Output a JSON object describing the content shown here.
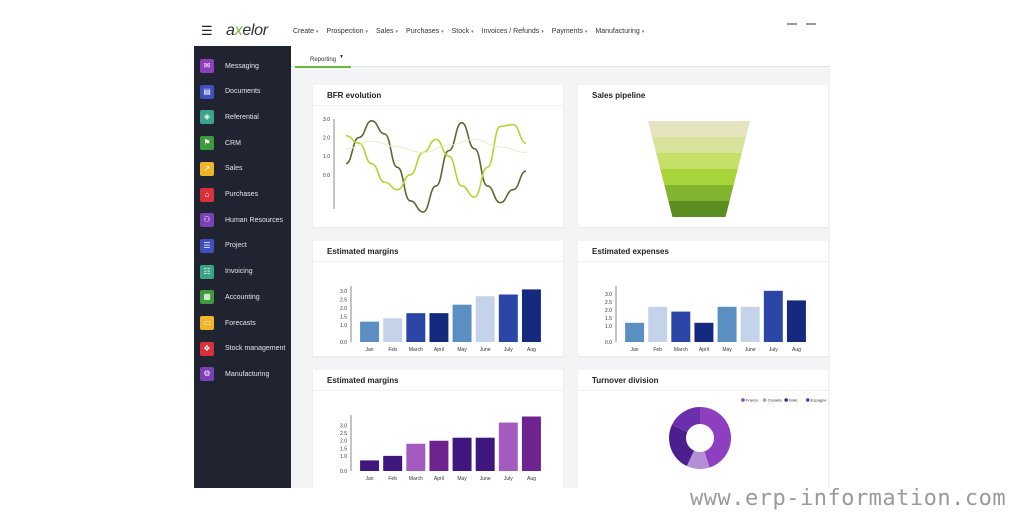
{
  "app": {
    "logo_prefix": "a",
    "logo_x": "x",
    "logo_suffix": "elor",
    "menu": [
      "Create",
      "Prospection",
      "Sales",
      "Purchases",
      "Stock",
      "Invoices / Refunds",
      "Payments",
      "Manufacturing"
    ]
  },
  "sidebar": {
    "items": [
      {
        "label": "Messaging",
        "icon": "messaging-icon",
        "color": "#8e3fbf",
        "glyph": "✉"
      },
      {
        "label": "Documents",
        "icon": "documents-icon",
        "color": "#3f4fbf",
        "glyph": "▤"
      },
      {
        "label": "Referential",
        "icon": "referential-icon",
        "color": "#3aa38a",
        "glyph": "◈"
      },
      {
        "label": "CRM",
        "icon": "crm-icon",
        "color": "#3d9a3d",
        "glyph": "⚑"
      },
      {
        "label": "Sales",
        "icon": "sales-icon",
        "color": "#f0b429",
        "glyph": "↗"
      },
      {
        "label": "Purchases",
        "icon": "purchases-icon",
        "color": "#d9303b",
        "glyph": "⌂"
      },
      {
        "label": "Human Resources",
        "icon": "human-resources-icon",
        "color": "#7b3fb8",
        "glyph": "⚇"
      },
      {
        "label": "Project",
        "icon": "project-icon",
        "color": "#3f4fbf",
        "glyph": "☰"
      },
      {
        "label": "Invoicing",
        "icon": "invoicing-icon",
        "color": "#3aa38a",
        "glyph": "☷"
      },
      {
        "label": "Accounting",
        "icon": "accounting-icon",
        "color": "#3d9a3d",
        "glyph": "▦"
      },
      {
        "label": "Forecasts",
        "icon": "forecasts-icon",
        "color": "#f0b429",
        "glyph": "▭"
      },
      {
        "label": "Stock management",
        "icon": "stock-management-icon",
        "color": "#d9303b",
        "glyph": "❖"
      },
      {
        "label": "Manufacturing",
        "icon": "manufacturing-icon",
        "color": "#7b3fb8",
        "glyph": "⚙"
      }
    ]
  },
  "tabs": [
    {
      "label": "Reporting",
      "active": true
    }
  ],
  "cards": {
    "bfr": {
      "title": "BFR evolution"
    },
    "pipeline": {
      "title": "Sales pipeline"
    },
    "margins1": {
      "title": "Estimated margins"
    },
    "expenses": {
      "title": "Estimated expenses"
    },
    "margins2": {
      "title": "Estimated margins"
    },
    "turnover": {
      "title": "Turnover division"
    }
  },
  "watermark": "www.erp-information.com",
  "chart_data": [
    {
      "id": "bfr",
      "type": "line",
      "title": "BFR evolution",
      "x": [
        10,
        20,
        30,
        40,
        50,
        60,
        70,
        80
      ],
      "x_ticks": [
        "10",
        "20",
        "30",
        "40",
        "50",
        "60",
        "70",
        "80"
      ],
      "y_ticks": [
        "3.0",
        "2.0",
        "1.0",
        "0.0"
      ],
      "ylim": [
        -2,
        3
      ],
      "series": [
        {
          "color": "#556b2f",
          "points": [
            [
              10,
              0.6
            ],
            [
              15,
              2.0
            ],
            [
              20,
              2.9
            ],
            [
              25,
              2.2
            ],
            [
              30,
              0.4
            ],
            [
              35,
              -1.4
            ],
            [
              40,
              -2.0
            ],
            [
              45,
              -0.6
            ],
            [
              50,
              1.3
            ],
            [
              55,
              2.8
            ],
            [
              60,
              1.4
            ],
            [
              65,
              -0.6
            ],
            [
              70,
              -1.5
            ],
            [
              75,
              -0.8
            ],
            [
              80,
              0.2
            ]
          ]
        },
        {
          "color": "#b5d334",
          "points": [
            [
              10,
              2.1
            ],
            [
              15,
              1.7
            ],
            [
              20,
              0.6
            ],
            [
              25,
              -0.4
            ],
            [
              30,
              -0.8
            ],
            [
              35,
              0.0
            ],
            [
              40,
              1.2
            ],
            [
              45,
              1.9
            ],
            [
              50,
              1.0
            ],
            [
              55,
              -0.6
            ],
            [
              60,
              -1.2
            ],
            [
              65,
              0.4
            ],
            [
              70,
              2.6
            ],
            [
              75,
              2.7
            ],
            [
              80,
              1.7
            ]
          ]
        },
        {
          "color": "#e6eec8",
          "points": [
            [
              10,
              1.4
            ],
            [
              20,
              1.8
            ],
            [
              30,
              1.5
            ],
            [
              40,
              1.2
            ],
            [
              50,
              1.6
            ],
            [
              60,
              1.9
            ],
            [
              70,
              1.5
            ],
            [
              80,
              1.2
            ]
          ]
        }
      ]
    },
    {
      "id": "pipeline",
      "type": "funnel",
      "title": "Sales pipeline",
      "stages": [
        {
          "value": 100,
          "color": "#e5e3c0"
        },
        {
          "value": 92,
          "color": "#d8e29b"
        },
        {
          "value": 84,
          "color": "#c5e066"
        },
        {
          "value": 76,
          "color": "#a8d43c"
        },
        {
          "value": 68,
          "color": "#82b52d"
        },
        {
          "value": 60,
          "color": "#5a8e21"
        }
      ]
    },
    {
      "id": "margins1",
      "type": "bar",
      "title": "Estimated margins",
      "categories": [
        "Jan",
        "Feb",
        "March",
        "April",
        "May",
        "June",
        "July",
        "Aug"
      ],
      "values": [
        1.2,
        1.4,
        1.7,
        1.7,
        2.2,
        2.7,
        2.8,
        3.1
      ],
      "colors": [
        "#5b8fc2",
        "#c5d3ea",
        "#2b46a6",
        "#152a7e",
        "#5b8fc2",
        "#c5d3ea",
        "#2b46a6",
        "#152a7e"
      ],
      "y_ticks": [
        "3.0",
        "2.5",
        "2.0",
        "1.5",
        "1.0",
        "0.0"
      ],
      "ylim": [
        0,
        3.3
      ]
    },
    {
      "id": "expenses",
      "type": "bar",
      "title": "Estimated expenses",
      "categories": [
        "Jan",
        "Feb",
        "March",
        "April",
        "May",
        "June",
        "July",
        "Aug"
      ],
      "values": [
        1.2,
        2.2,
        1.9,
        1.2,
        2.2,
        2.2,
        3.2,
        2.6
      ],
      "colors": [
        "#5b8fc2",
        "#c5d3ea",
        "#2b46a6",
        "#152a7e",
        "#5b8fc2",
        "#c5d3ea",
        "#2b46a6",
        "#152a7e"
      ],
      "y_ticks": [
        "3.0",
        "2.5",
        "2.0",
        "1.5",
        "1.0",
        "0.0"
      ],
      "ylim": [
        0,
        3.5
      ]
    },
    {
      "id": "margins2",
      "type": "bar",
      "title": "Estimated margins",
      "categories": [
        "Jan",
        "Feb",
        "March",
        "April",
        "May",
        "June",
        "July",
        "Aug"
      ],
      "values": [
        0.7,
        1.0,
        1.8,
        2.0,
        2.2,
        2.2,
        3.2,
        3.6
      ],
      "colors": [
        "#3f157e",
        "#3f157e",
        "#a35bc0",
        "#6f238e",
        "#3f157e",
        "#3f157e",
        "#a35bc0",
        "#6f238e"
      ],
      "y_ticks": [
        "3.0",
        "2.5",
        "2.0",
        "1.5",
        "1.0",
        "0.0"
      ],
      "ylim": [
        0,
        3.7
      ]
    },
    {
      "id": "turnover",
      "type": "pie",
      "title": "Turnover division",
      "legend": [
        {
          "name": "France",
          "color": "#8e3fbf"
        },
        {
          "name": "Canada",
          "color": "#b58fd6"
        },
        {
          "name": "Italie",
          "color": "#4b1f8e"
        },
        {
          "name": "Espagne",
          "color": "#6b2fae"
        }
      ],
      "values": [
        45,
        12,
        25,
        18
      ],
      "legend_position": "top-right"
    }
  ]
}
